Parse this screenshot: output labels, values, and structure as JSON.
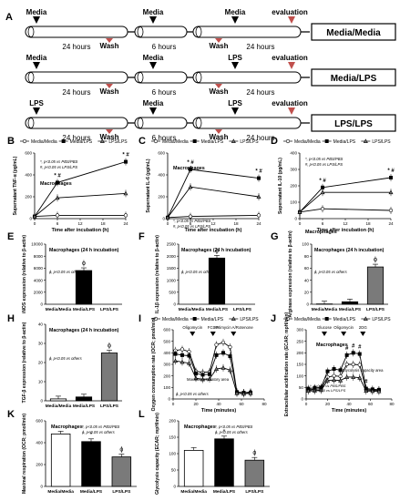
{
  "panelA": {
    "letter": "A",
    "rows": [
      {
        "labels": [
          "Media",
          "Wash",
          "Media",
          "Wash",
          "Media",
          "evaluation"
        ],
        "durations": [
          "24 hours",
          "6 hours",
          "24 hours"
        ],
        "box": "Media/Media"
      },
      {
        "labels": [
          "Media",
          "Wash",
          "Media",
          "Wash",
          "LPS",
          "evaluation"
        ],
        "durations": [
          "24 hours",
          "6 hours",
          "24 hours"
        ],
        "box": "Media/LPS"
      },
      {
        "labels": [
          "LPS",
          "Wash",
          "Media",
          "Wash",
          "LPS",
          "evaluation"
        ],
        "durations": [
          "24 hours",
          "6 hours",
          "24 hours"
        ],
        "box": "LPS/LPS"
      }
    ]
  },
  "legend3": [
    "Media/Media",
    "Media/LPS",
    "LPS/LPS"
  ],
  "chart_data": [
    {
      "id": "B",
      "type": "line",
      "ylabel": "Supernatant TNF-α (pg/mL)",
      "xlabel": "Time after incubation (h)",
      "xticks": [
        "0",
        "6",
        "12",
        "18",
        "24"
      ],
      "yticks": [
        "0",
        "200",
        "400",
        "600"
      ],
      "ylim": [
        0,
        600
      ],
      "x": [
        0,
        6,
        24
      ],
      "cell": "Macrophages",
      "stats": [
        "*, p<0.05 vs PBS/PBS",
        "#, p<0.05 vs LPS/LPS"
      ],
      "marks": [
        "* #",
        "* #"
      ],
      "series": [
        {
          "name": "Media/Media",
          "values": [
            20,
            30,
            30
          ]
        },
        {
          "name": "Media/LPS",
          "values": [
            20,
            330,
            520
          ]
        },
        {
          "name": "LPS/LPS",
          "values": [
            20,
            190,
            230
          ]
        }
      ]
    },
    {
      "id": "C",
      "type": "line",
      "ylabel": "Supernatant IL-6 (pg/mL)",
      "xlabel": "Time after incubation (h)",
      "xticks": [
        "0",
        "6",
        "12",
        "18",
        "24"
      ],
      "yticks": [
        "0",
        "200",
        "400",
        "600"
      ],
      "ylim": [
        0,
        600
      ],
      "x": [
        0,
        6,
        24
      ],
      "cell": "Macrophages",
      "stats": [
        "*, p<0.05 vs PBS/PBS",
        "#, p<0.05 vs LPS/LPS"
      ],
      "marks": [
        "* #",
        "* #"
      ],
      "series": [
        {
          "name": "Media/Media",
          "values": [
            10,
            20,
            30
          ]
        },
        {
          "name": "Media/LPS",
          "values": [
            10,
            450,
            370
          ]
        },
        {
          "name": "LPS/LPS",
          "values": [
            10,
            290,
            200
          ]
        }
      ]
    },
    {
      "id": "D",
      "type": "line",
      "ylabel": "Supernatant IL-10 (pg/mL)",
      "xlabel": "Time after incubation (h)",
      "xticks": [
        "0",
        "6",
        "12",
        "18",
        "24"
      ],
      "yticks": [
        "0",
        "100",
        "200",
        "300",
        "400"
      ],
      "ylim": [
        0,
        400
      ],
      "x": [
        0,
        6,
        24
      ],
      "cell": "Macrophages",
      "stats": [
        "*, p<0.05 vs PBS/PBS",
        "#, p<0.05 vs LPS/LPS"
      ],
      "marks": [
        "* #",
        "* #"
      ],
      "series": [
        {
          "name": "Media/Media",
          "values": [
            40,
            60,
            50
          ]
        },
        {
          "name": "Media/LPS",
          "values": [
            40,
            190,
            250
          ]
        },
        {
          "name": "LPS/LPS",
          "values": [
            40,
            160,
            160
          ]
        }
      ]
    },
    {
      "id": "E",
      "type": "bar",
      "ylabel": "iNOS expression (relative to β-actin)",
      "categories": [
        "Media/Media",
        "Media/LPS",
        "LPS/LPS"
      ],
      "values": [
        0,
        5600,
        0
      ],
      "yticks": [
        "0",
        "2000",
        "4000",
        "6000",
        "8000",
        "10000"
      ],
      "ylim": [
        0,
        10000
      ],
      "cell": "Macrophages (24 h incubation)",
      "stats": [
        "ϕ, p<0.05 vs others"
      ],
      "sig": "ϕ",
      "sigIndex": 1
    },
    {
      "id": "F",
      "type": "bar",
      "ylabel": "IL-1β expression (relative to β-actin)",
      "categories": [
        "Media/Media",
        "Media/LPS",
        "LPS/LPS"
      ],
      "values": [
        0,
        1920,
        0
      ],
      "yticks": [
        "0",
        "500",
        "1000",
        "1500",
        "2000",
        "2500"
      ],
      "ylim": [
        0,
        2500
      ],
      "cell": "Macrophages (24 h incubation)",
      "stats": [
        "ϕ, p<0.05 vs others"
      ],
      "sig": "ϕ",
      "sigIndex": 1
    },
    {
      "id": "G",
      "type": "bar",
      "ylabel": "Arginase expression (relative to β-actin)",
      "categories": [
        "Media/Media",
        "Media/LPS",
        "LPS/LPS"
      ],
      "values": [
        0.5,
        4,
        62
      ],
      "yticks": [
        "0",
        "20",
        "40",
        "60",
        "80",
        "100"
      ],
      "ylim": [
        0,
        100
      ],
      "cell": "Macrophages (24 h incubation)",
      "stats": [
        "ϕ, p<0.05 vs others"
      ],
      "sig": "ϕ",
      "sigIndex": 2
    },
    {
      "id": "H",
      "type": "bar",
      "ylabel": "TGF-β expression (relative to β-actin)",
      "categories": [
        "Media/Media",
        "Media/LPS",
        "LPS/LPS"
      ],
      "values": [
        1,
        2,
        25
      ],
      "yticks": [
        "0",
        "10",
        "20",
        "30",
        "40"
      ],
      "ylim": [
        0,
        40
      ],
      "cell": "Macrophages (24 h incubation)",
      "stats": [
        "ϕ, p<0.05 vs others"
      ],
      "sig": "ϕ",
      "sigIndex": 2
    },
    {
      "id": "I",
      "type": "line",
      "ylabel": "Oxygen consumption rate (OCR; pmol/min)",
      "xlabel": "Time (minutes)",
      "xticks": [
        "0",
        "20",
        "40",
        "60",
        "80"
      ],
      "yticks": [
        "0",
        "100",
        "200",
        "300",
        "400",
        "500",
        "600"
      ],
      "ylim": [
        0,
        600
      ],
      "cell": "Macrophages",
      "stats": [
        "ϕ, p<0.05 vs others"
      ],
      "injections": [
        "Oligomycin",
        "FCCP",
        "Antimycin A/Rotenone"
      ],
      "annotation": "Maximal respiratory area",
      "x": [
        2,
        8,
        14,
        20,
        26,
        32,
        38,
        44,
        50,
        56,
        62,
        68
      ],
      "series": [
        {
          "name": "Media/Media",
          "values": [
            420,
            430,
            410,
            240,
            230,
            235,
            470,
            490,
            450,
            60,
            55,
            60
          ]
        },
        {
          "name": "Media/LPS",
          "values": [
            390,
            380,
            375,
            220,
            210,
            215,
            380,
            400,
            370,
            60,
            55,
            55
          ]
        },
        {
          "name": "LPS/LPS",
          "values": [
            330,
            320,
            310,
            180,
            170,
            175,
            260,
            270,
            250,
            50,
            45,
            50
          ]
        }
      ]
    },
    {
      "id": "J",
      "type": "line",
      "ylabel": "Extracellular acidification rate (ECAR; mpH/min)",
      "xlabel": "Time (minutes)",
      "xticks": [
        "0",
        "20",
        "40",
        "60",
        "80"
      ],
      "yticks": [
        "0",
        "50",
        "100",
        "150",
        "200",
        "250",
        "300"
      ],
      "ylim": [
        0,
        300
      ],
      "cell": "Macrophages",
      "stats": [
        "*, p<0.05 vs PBS/PBS",
        "#, p<0.05 vs LPS/LPS"
      ],
      "injections": [
        "Glucose",
        "Oligomycin",
        "2DG"
      ],
      "annotation": "Glycolysis capacity area",
      "marks": [
        "#",
        "#",
        "#",
        "#"
      ],
      "x": [
        2,
        8,
        14,
        20,
        26,
        32,
        38,
        44,
        50,
        56,
        62,
        68
      ],
      "series": [
        {
          "name": "Media/Media",
          "values": [
            40,
            42,
            45,
            95,
            100,
            98,
            150,
            150,
            148,
            40,
            38,
            38
          ]
        },
        {
          "name": "Media/LPS",
          "values": [
            45,
            48,
            50,
            120,
            130,
            125,
            190,
            200,
            195,
            45,
            42,
            40
          ]
        },
        {
          "name": "LPS/LPS",
          "values": [
            35,
            36,
            38,
            80,
            82,
            80,
            95,
            95,
            92,
            35,
            34,
            33
          ]
        }
      ]
    },
    {
      "id": "K",
      "type": "bar",
      "ylabel": "Maximal respiration (OCR; pmol/min)",
      "categories": [
        "Media/Media",
        "Media/LPS",
        "LPS/LPS"
      ],
      "values": [
        480,
        410,
        270
      ],
      "yticks": [
        "0",
        "200",
        "400",
        "600"
      ],
      "ylim": [
        0,
        600
      ],
      "cell": "Macrophages",
      "stats": [
        "*, p<0.05 vs PBS/PBS",
        "ϕ, p<0.05 vs others"
      ],
      "sig": "*",
      "sigIndex": 1,
      "sig2": "ϕ",
      "sig2Index": 2
    },
    {
      "id": "L",
      "type": "bar",
      "ylabel": "Glycolysis capacity (ECAR; mpH/min)",
      "categories": [
        "Media/Media",
        "Media/LPS",
        "LPS/LPS"
      ],
      "values": [
        110,
        145,
        80
      ],
      "yticks": [
        "0",
        "50",
        "100",
        "150",
        "200"
      ],
      "ylim": [
        0,
        200
      ],
      "cell": "Macrophages",
      "stats": [
        "*, p<0.05 vs PBS/PBS",
        "ϕ, p<0.05 vs others"
      ],
      "sig": "*",
      "sigIndex": 1,
      "sig2": "ϕ",
      "sig2Index": 2
    }
  ],
  "colors": {
    "media_media": "#ffffff",
    "media_lps": "#000000",
    "lps_lps": "#7a7a7a",
    "wash_arrow": "#c0504d"
  }
}
